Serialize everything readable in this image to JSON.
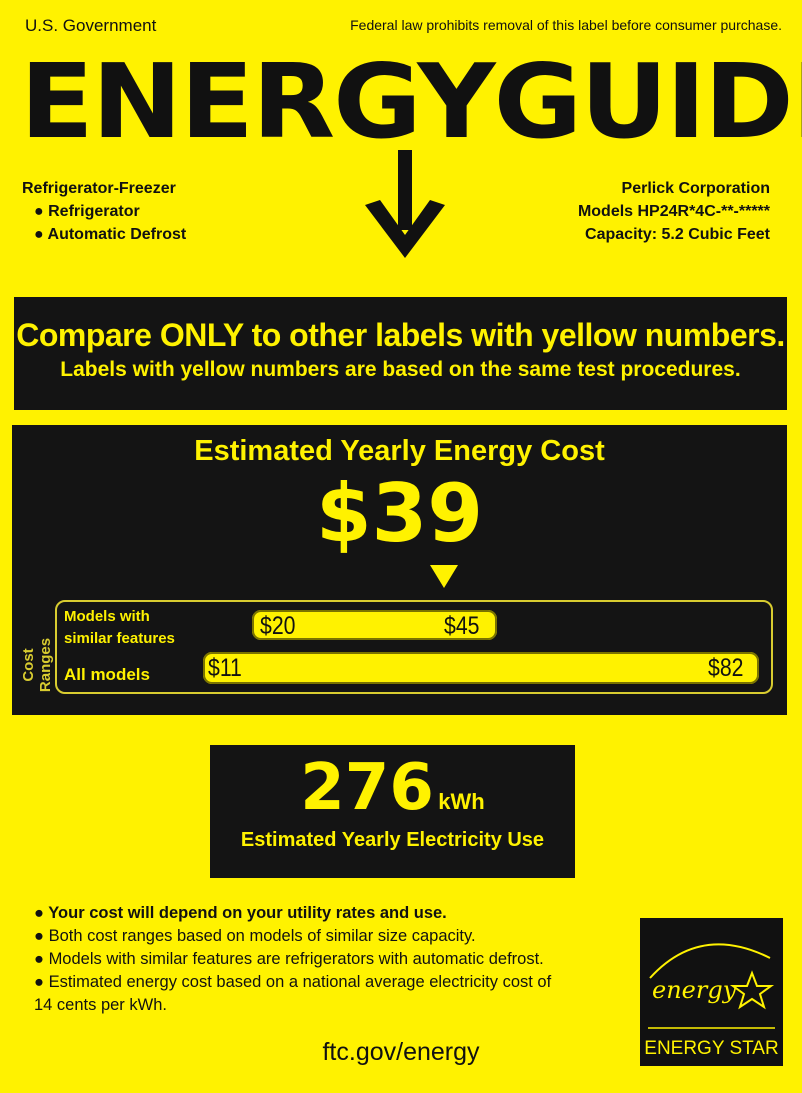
{
  "header": {
    "left": "U.S. Government",
    "right": "Federal law prohibits removal of this label before consumer purchase."
  },
  "logo_text": "ENERGYGUIDE",
  "product": {
    "type": "Refrigerator-Freezer",
    "features": [
      "Refrigerator",
      "Automatic Defrost"
    ]
  },
  "manufacturer": {
    "name": "Perlick Corporation",
    "models": "Models HP24R*4C-**-*****",
    "capacity": "Capacity: 5.2 Cubic Feet"
  },
  "compare": {
    "title": "Compare ONLY to other labels with yellow numbers.",
    "subtitle": "Labels with yellow numbers are based on the same test procedures."
  },
  "cost": {
    "title": "Estimated Yearly Energy Cost",
    "value": "$39",
    "ranges_label": "Cost Ranges",
    "similar": {
      "label_line1": "Models with",
      "label_line2": "similar features",
      "min": "$20",
      "max": "$45"
    },
    "all": {
      "label": "All models",
      "min": "$11",
      "max": "$82"
    }
  },
  "usage": {
    "value": "276",
    "unit": "kWh",
    "label": "Estimated Yearly Electricity Use"
  },
  "notes": [
    "Your cost will depend on your utility rates and use.",
    "Both cost ranges based on models of similar size capacity.",
    "Models with similar features are refrigerators with automatic defrost.",
    "Estimated energy cost based on a national average electricity cost of"
  ],
  "notes_cont": "14 cents per kWh.",
  "footer_link": "ftc.gov/energy",
  "energy_star": {
    "script": "energy",
    "label": "ENERGY STAR"
  },
  "colors": {
    "yellow": "#fff200",
    "black": "#141414"
  }
}
